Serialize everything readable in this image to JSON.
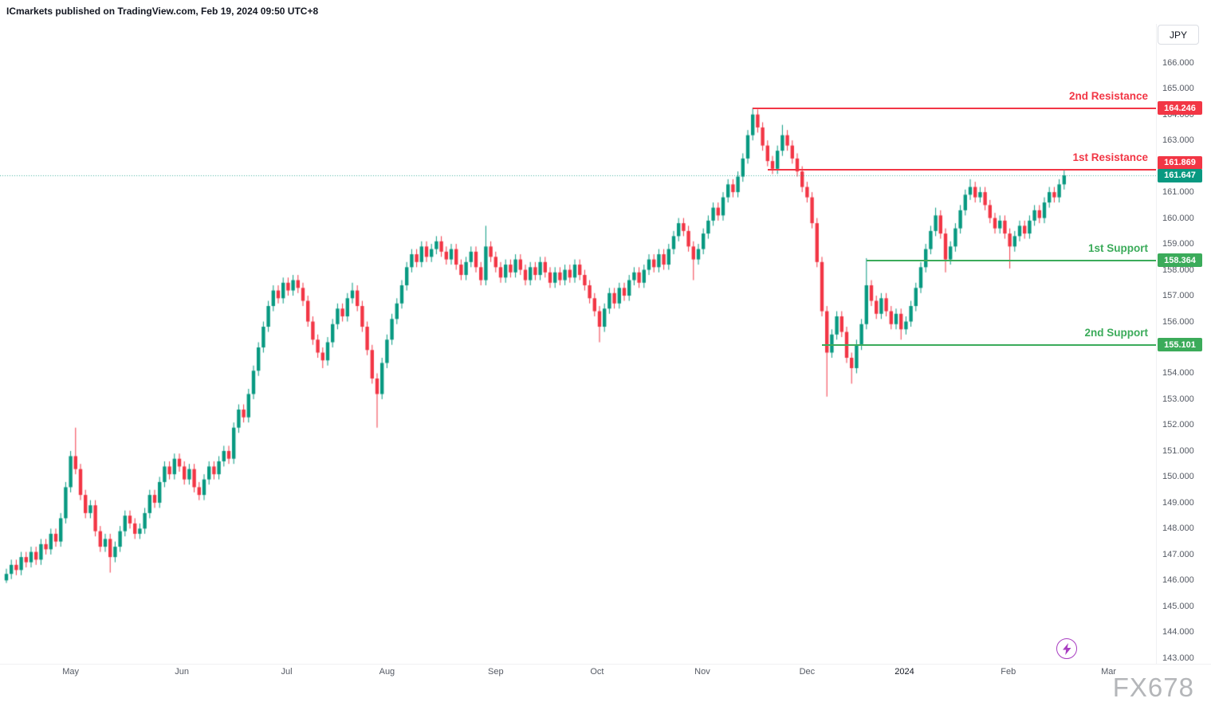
{
  "header": {
    "publisher": "ICmarkets",
    "publish_info": " published on TradingView.com, Feb 19, 2024 09:50 UTC+8"
  },
  "top_right": {
    "currency_label": "JPY"
  },
  "watermark_text": "FX678",
  "colors": {
    "up": "#089981",
    "down": "#f23645",
    "resistance": "#f23645",
    "support": "#3bab5a",
    "current": "#089981",
    "axis_text": "#555a64",
    "header_text": "#131722",
    "bolt": "#a83dc1"
  },
  "current_price": {
    "label": "161.647",
    "value": 161.647
  },
  "levels": [
    {
      "name": "2nd Resistance",
      "price": 164.246,
      "price_label": "164.246",
      "kind": "resistance",
      "start_index": 151
    },
    {
      "name": "1st Resistance",
      "price": 161.869,
      "price_label": "161.869",
      "kind": "resistance",
      "start_index": 154
    },
    {
      "name": "1st Support",
      "price": 158.364,
      "price_label": "158.364",
      "kind": "support",
      "start_index": 174
    },
    {
      "name": "2nd Support",
      "price": 155.101,
      "price_label": "155.101",
      "kind": "support",
      "start_index": 165
    }
  ],
  "chart_data": {
    "type": "candlestick",
    "instrument_currency": "JPY",
    "timeframe": "daily",
    "ylim": [
      142.1,
      167.5
    ],
    "grid": false,
    "price_ticks": [
      "166.000",
      "165.000",
      "164.000",
      "163.000",
      "162.000",
      "161.000",
      "160.000",
      "159.000",
      "158.000",
      "157.000",
      "156.000",
      "155.000",
      "154.000",
      "153.000",
      "152.000",
      "151.000",
      "150.000",
      "149.000",
      "148.000",
      "147.000",
      "146.000",
      "145.000",
      "144.000",
      "143.000"
    ],
    "time_ticks": [
      {
        "label": "May",
        "index": 13
      },
      {
        "label": "Jun",
        "index": 35.5
      },
      {
        "label": "Jul",
        "index": 56.7
      },
      {
        "label": "Aug",
        "index": 77
      },
      {
        "label": "Sep",
        "index": 99
      },
      {
        "label": "Oct",
        "index": 119.5
      },
      {
        "label": "Nov",
        "index": 140.8
      },
      {
        "label": "Dec",
        "index": 162
      },
      {
        "label": "2024",
        "index": 181.7,
        "strong": true
      },
      {
        "label": "Feb",
        "index": 202.7
      },
      {
        "label": "Mar",
        "index": 223
      }
    ],
    "candles": [
      [
        146.0,
        146.45,
        145.9,
        146.25
      ],
      [
        146.25,
        146.8,
        146.05,
        146.6
      ],
      [
        146.6,
        146.8,
        146.2,
        146.4
      ],
      [
        146.4,
        147.1,
        146.2,
        146.9
      ],
      [
        146.9,
        147.1,
        146.5,
        146.7
      ],
      [
        146.7,
        147.3,
        146.5,
        147.1
      ],
      [
        147.1,
        147.3,
        146.6,
        146.8
      ],
      [
        146.8,
        147.6,
        146.6,
        147.4
      ],
      [
        147.4,
        147.6,
        147.0,
        147.2
      ],
      [
        147.2,
        148.0,
        147.0,
        147.8
      ],
      [
        147.8,
        148.0,
        147.3,
        147.5
      ],
      [
        147.5,
        148.6,
        147.3,
        148.4
      ],
      [
        148.4,
        149.8,
        148.2,
        149.6
      ],
      [
        149.6,
        151.0,
        149.4,
        150.8
      ],
      [
        150.8,
        151.9,
        150.1,
        150.3
      ],
      [
        150.3,
        150.5,
        149.1,
        149.3
      ],
      [
        149.3,
        149.5,
        148.4,
        148.6
      ],
      [
        148.6,
        149.1,
        148.4,
        148.9
      ],
      [
        148.9,
        149.1,
        147.7,
        147.9
      ],
      [
        147.9,
        148.1,
        147.1,
        147.3
      ],
      [
        147.3,
        147.8,
        147.1,
        147.6
      ],
      [
        147.6,
        147.8,
        146.3,
        146.9
      ],
      [
        146.9,
        147.5,
        146.7,
        147.3
      ],
      [
        147.3,
        148.1,
        147.1,
        147.9
      ],
      [
        147.9,
        148.7,
        147.7,
        148.5
      ],
      [
        148.5,
        148.7,
        148.0,
        148.2
      ],
      [
        148.2,
        148.4,
        147.6,
        147.8
      ],
      [
        147.8,
        148.2,
        147.6,
        148.0
      ],
      [
        148.0,
        148.8,
        147.8,
        148.6
      ],
      [
        148.6,
        149.5,
        148.4,
        149.3
      ],
      [
        149.3,
        149.5,
        148.8,
        149.0
      ],
      [
        149.0,
        150.0,
        148.8,
        149.8
      ],
      [
        149.8,
        150.6,
        149.6,
        150.4
      ],
      [
        150.4,
        150.6,
        149.9,
        150.1
      ],
      [
        150.1,
        150.9,
        149.9,
        150.7
      ],
      [
        150.7,
        150.9,
        150.2,
        150.4
      ],
      [
        150.4,
        150.6,
        149.7,
        149.9
      ],
      [
        149.9,
        150.5,
        149.7,
        150.3
      ],
      [
        150.3,
        150.5,
        149.4,
        149.6
      ],
      [
        149.6,
        149.8,
        149.1,
        149.3
      ],
      [
        149.3,
        150.1,
        149.1,
        149.9
      ],
      [
        149.9,
        150.6,
        149.7,
        150.4
      ],
      [
        150.4,
        150.6,
        149.9,
        150.1
      ],
      [
        150.1,
        150.8,
        149.9,
        150.6
      ],
      [
        150.6,
        151.2,
        150.4,
        151.0
      ],
      [
        151.0,
        151.2,
        150.5,
        150.7
      ],
      [
        150.7,
        152.1,
        150.5,
        151.9
      ],
      [
        151.9,
        152.8,
        151.7,
        152.6
      ],
      [
        152.6,
        152.8,
        152.1,
        152.3
      ],
      [
        152.3,
        153.4,
        152.1,
        153.2
      ],
      [
        153.2,
        154.3,
        153.0,
        154.1
      ],
      [
        154.1,
        155.2,
        153.9,
        155.0
      ],
      [
        155.0,
        156.0,
        154.8,
        155.8
      ],
      [
        155.8,
        156.8,
        155.6,
        156.6
      ],
      [
        156.6,
        157.4,
        156.4,
        157.2
      ],
      [
        157.2,
        157.4,
        156.7,
        156.9
      ],
      [
        156.9,
        157.7,
        156.7,
        157.5
      ],
      [
        157.5,
        157.7,
        157.0,
        157.2
      ],
      [
        157.2,
        157.8,
        157.0,
        157.6
      ],
      [
        157.6,
        157.8,
        157.1,
        157.3
      ],
      [
        157.3,
        157.5,
        156.6,
        156.8
      ],
      [
        156.8,
        157.0,
        155.8,
        156.0
      ],
      [
        156.0,
        156.2,
        155.1,
        155.3
      ],
      [
        155.3,
        155.5,
        154.6,
        154.8
      ],
      [
        154.8,
        155.0,
        154.2,
        154.5
      ],
      [
        154.5,
        155.4,
        154.3,
        155.2
      ],
      [
        155.2,
        156.1,
        155.0,
        155.9
      ],
      [
        155.9,
        156.7,
        155.7,
        156.5
      ],
      [
        156.5,
        156.7,
        156.0,
        156.2
      ],
      [
        156.2,
        157.1,
        156.0,
        156.9
      ],
      [
        156.9,
        157.5,
        156.7,
        157.2
      ],
      [
        157.2,
        157.4,
        156.4,
        156.6
      ],
      [
        156.6,
        156.8,
        155.6,
        155.8
      ],
      [
        155.8,
        156.0,
        154.7,
        154.9
      ],
      [
        154.9,
        155.1,
        153.6,
        153.8
      ],
      [
        153.8,
        154.0,
        151.9,
        153.2
      ],
      [
        153.2,
        154.6,
        153.0,
        154.4
      ],
      [
        154.4,
        155.5,
        154.2,
        155.3
      ],
      [
        155.3,
        156.3,
        155.1,
        156.1
      ],
      [
        156.1,
        156.9,
        155.9,
        156.7
      ],
      [
        156.7,
        157.6,
        156.5,
        157.4
      ],
      [
        157.4,
        158.3,
        157.2,
        158.1
      ],
      [
        158.1,
        158.8,
        157.9,
        158.6
      ],
      [
        158.6,
        158.8,
        158.1,
        158.3
      ],
      [
        158.3,
        159.1,
        158.1,
        158.9
      ],
      [
        158.9,
        159.1,
        158.3,
        158.5
      ],
      [
        158.5,
        159.0,
        158.3,
        158.8
      ],
      [
        158.8,
        159.3,
        158.6,
        159.1
      ],
      [
        159.1,
        159.3,
        158.5,
        158.7
      ],
      [
        158.7,
        158.9,
        158.2,
        158.4
      ],
      [
        158.4,
        159.0,
        158.2,
        158.8
      ],
      [
        158.8,
        159.0,
        158.0,
        158.2
      ],
      [
        158.2,
        158.4,
        157.6,
        157.8
      ],
      [
        157.8,
        158.5,
        157.6,
        158.3
      ],
      [
        158.3,
        158.9,
        158.1,
        158.7
      ],
      [
        158.7,
        158.9,
        157.9,
        158.1
      ],
      [
        158.1,
        158.3,
        157.4,
        157.6
      ],
      [
        157.6,
        159.7,
        157.4,
        158.9
      ],
      [
        158.9,
        159.1,
        158.3,
        158.5
      ],
      [
        158.5,
        158.7,
        157.9,
        158.1
      ],
      [
        158.1,
        158.3,
        157.5,
        157.7
      ],
      [
        157.7,
        158.4,
        157.5,
        158.2
      ],
      [
        158.2,
        158.4,
        157.7,
        157.9
      ],
      [
        157.9,
        158.6,
        157.7,
        158.4
      ],
      [
        158.4,
        158.6,
        157.8,
        158.0
      ],
      [
        158.0,
        158.2,
        157.4,
        157.6
      ],
      [
        157.6,
        158.3,
        157.4,
        158.1
      ],
      [
        158.1,
        158.3,
        157.6,
        157.8
      ],
      [
        157.8,
        158.5,
        157.6,
        158.3
      ],
      [
        158.3,
        158.5,
        157.7,
        157.9
      ],
      [
        157.9,
        158.1,
        157.3,
        157.5
      ],
      [
        157.5,
        158.1,
        157.3,
        157.9
      ],
      [
        157.9,
        158.1,
        157.4,
        157.6
      ],
      [
        157.6,
        158.2,
        157.4,
        158.0
      ],
      [
        158.0,
        158.2,
        157.5,
        157.7
      ],
      [
        157.7,
        158.4,
        157.5,
        158.2
      ],
      [
        158.2,
        158.4,
        157.6,
        157.8
      ],
      [
        157.8,
        158.0,
        157.2,
        157.4
      ],
      [
        157.4,
        157.6,
        156.7,
        156.9
      ],
      [
        156.9,
        157.1,
        156.2,
        156.4
      ],
      [
        156.4,
        156.6,
        155.2,
        155.8
      ],
      [
        155.8,
        156.7,
        155.6,
        156.5
      ],
      [
        156.5,
        157.3,
        156.3,
        157.1
      ],
      [
        157.1,
        157.3,
        156.5,
        156.7
      ],
      [
        156.7,
        157.5,
        156.5,
        157.3
      ],
      [
        157.3,
        157.5,
        156.8,
        157.0
      ],
      [
        157.0,
        157.8,
        156.8,
        157.6
      ],
      [
        157.6,
        158.1,
        157.4,
        157.9
      ],
      [
        157.9,
        158.1,
        157.3,
        157.5
      ],
      [
        157.5,
        158.2,
        157.3,
        158.0
      ],
      [
        158.0,
        158.6,
        157.8,
        158.4
      ],
      [
        158.4,
        158.6,
        157.9,
        158.1
      ],
      [
        158.1,
        158.8,
        157.9,
        158.6
      ],
      [
        158.6,
        158.8,
        158.0,
        158.2
      ],
      [
        158.2,
        159.0,
        158.0,
        158.8
      ],
      [
        158.8,
        159.5,
        158.6,
        159.3
      ],
      [
        159.3,
        160.0,
        159.1,
        159.8
      ],
      [
        159.8,
        160.0,
        159.3,
        159.5
      ],
      [
        159.5,
        159.7,
        158.7,
        158.9
      ],
      [
        158.9,
        159.1,
        157.6,
        158.4
      ],
      [
        158.4,
        159.0,
        158.2,
        158.8
      ],
      [
        158.8,
        159.6,
        158.6,
        159.4
      ],
      [
        159.4,
        160.1,
        159.2,
        159.9
      ],
      [
        159.9,
        160.6,
        159.7,
        160.4
      ],
      [
        160.4,
        160.6,
        159.9,
        160.1
      ],
      [
        160.1,
        161.0,
        159.9,
        160.8
      ],
      [
        160.8,
        161.5,
        160.6,
        161.3
      ],
      [
        161.3,
        161.5,
        160.8,
        161.0
      ],
      [
        161.0,
        161.8,
        160.8,
        161.6
      ],
      [
        161.6,
        162.5,
        161.4,
        162.3
      ],
      [
        162.3,
        163.4,
        162.1,
        163.2
      ],
      [
        163.2,
        164.25,
        163.0,
        164.0
      ],
      [
        164.0,
        164.2,
        163.3,
        163.5
      ],
      [
        163.5,
        163.7,
        162.6,
        162.8
      ],
      [
        162.8,
        163.0,
        162.0,
        162.2
      ],
      [
        162.2,
        162.4,
        161.7,
        161.9
      ],
      [
        161.9,
        162.8,
        161.7,
        162.6
      ],
      [
        162.6,
        163.6,
        162.4,
        163.2
      ],
      [
        163.2,
        163.4,
        162.6,
        162.8
      ],
      [
        162.8,
        163.0,
        162.1,
        162.3
      ],
      [
        162.3,
        162.5,
        161.6,
        161.8
      ],
      [
        161.8,
        162.0,
        161.0,
        161.2
      ],
      [
        161.2,
        161.4,
        160.6,
        160.8
      ],
      [
        160.8,
        161.0,
        159.6,
        159.8
      ],
      [
        159.8,
        160.0,
        158.1,
        158.3
      ],
      [
        158.3,
        158.5,
        156.2,
        156.4
      ],
      [
        156.4,
        156.6,
        153.1,
        154.8
      ],
      [
        154.8,
        155.7,
        154.6,
        155.5
      ],
      [
        155.5,
        156.4,
        155.3,
        156.2
      ],
      [
        156.2,
        156.4,
        155.4,
        155.6
      ],
      [
        155.6,
        155.8,
        154.4,
        154.6
      ],
      [
        154.6,
        154.8,
        153.6,
        154.2
      ],
      [
        154.2,
        155.3,
        154.0,
        155.1
      ],
      [
        155.1,
        156.1,
        154.9,
        155.9
      ],
      [
        155.9,
        158.45,
        155.7,
        157.4
      ],
      [
        157.4,
        157.6,
        156.6,
        156.8
      ],
      [
        156.8,
        157.0,
        156.1,
        156.3
      ],
      [
        156.3,
        157.1,
        156.1,
        156.9
      ],
      [
        156.9,
        157.1,
        156.2,
        156.4
      ],
      [
        156.4,
        156.6,
        155.7,
        155.9
      ],
      [
        155.9,
        156.5,
        155.7,
        156.3
      ],
      [
        156.3,
        156.5,
        155.3,
        155.7
      ],
      [
        155.7,
        156.2,
        155.5,
        156.0
      ],
      [
        156.0,
        156.8,
        155.8,
        156.6
      ],
      [
        156.6,
        157.5,
        156.4,
        157.3
      ],
      [
        157.3,
        158.3,
        157.1,
        158.1
      ],
      [
        158.1,
        159.0,
        157.9,
        158.8
      ],
      [
        158.8,
        159.7,
        158.6,
        159.5
      ],
      [
        159.5,
        160.4,
        159.3,
        160.1
      ],
      [
        160.1,
        160.3,
        159.2,
        159.4
      ],
      [
        159.4,
        159.6,
        157.9,
        158.4
      ],
      [
        158.4,
        159.1,
        158.2,
        158.9
      ],
      [
        158.9,
        159.8,
        158.7,
        159.6
      ],
      [
        159.6,
        160.5,
        159.4,
        160.3
      ],
      [
        160.3,
        161.1,
        160.1,
        160.9
      ],
      [
        160.9,
        161.5,
        160.7,
        161.2
      ],
      [
        161.2,
        161.4,
        160.6,
        160.8
      ],
      [
        160.8,
        161.2,
        160.6,
        161.0
      ],
      [
        161.0,
        161.2,
        160.3,
        160.5
      ],
      [
        160.5,
        160.7,
        159.8,
        160.0
      ],
      [
        160.0,
        160.2,
        159.4,
        159.6
      ],
      [
        159.6,
        160.1,
        159.4,
        159.9
      ],
      [
        159.9,
        160.1,
        159.2,
        159.4
      ],
      [
        159.4,
        159.6,
        158.05,
        158.9
      ],
      [
        158.9,
        159.5,
        158.7,
        159.3
      ],
      [
        159.3,
        159.9,
        159.1,
        159.7
      ],
      [
        159.7,
        159.9,
        159.2,
        159.4
      ],
      [
        159.4,
        160.1,
        159.2,
        159.9
      ],
      [
        159.9,
        160.5,
        159.7,
        160.3
      ],
      [
        160.3,
        160.5,
        159.8,
        160.0
      ],
      [
        160.0,
        160.8,
        159.8,
        160.6
      ],
      [
        160.6,
        161.2,
        160.4,
        161.0
      ],
      [
        161.0,
        161.2,
        160.6,
        160.8
      ],
      [
        160.8,
        161.5,
        160.6,
        161.3
      ],
      [
        161.3,
        161.87,
        161.1,
        161.647
      ]
    ]
  }
}
